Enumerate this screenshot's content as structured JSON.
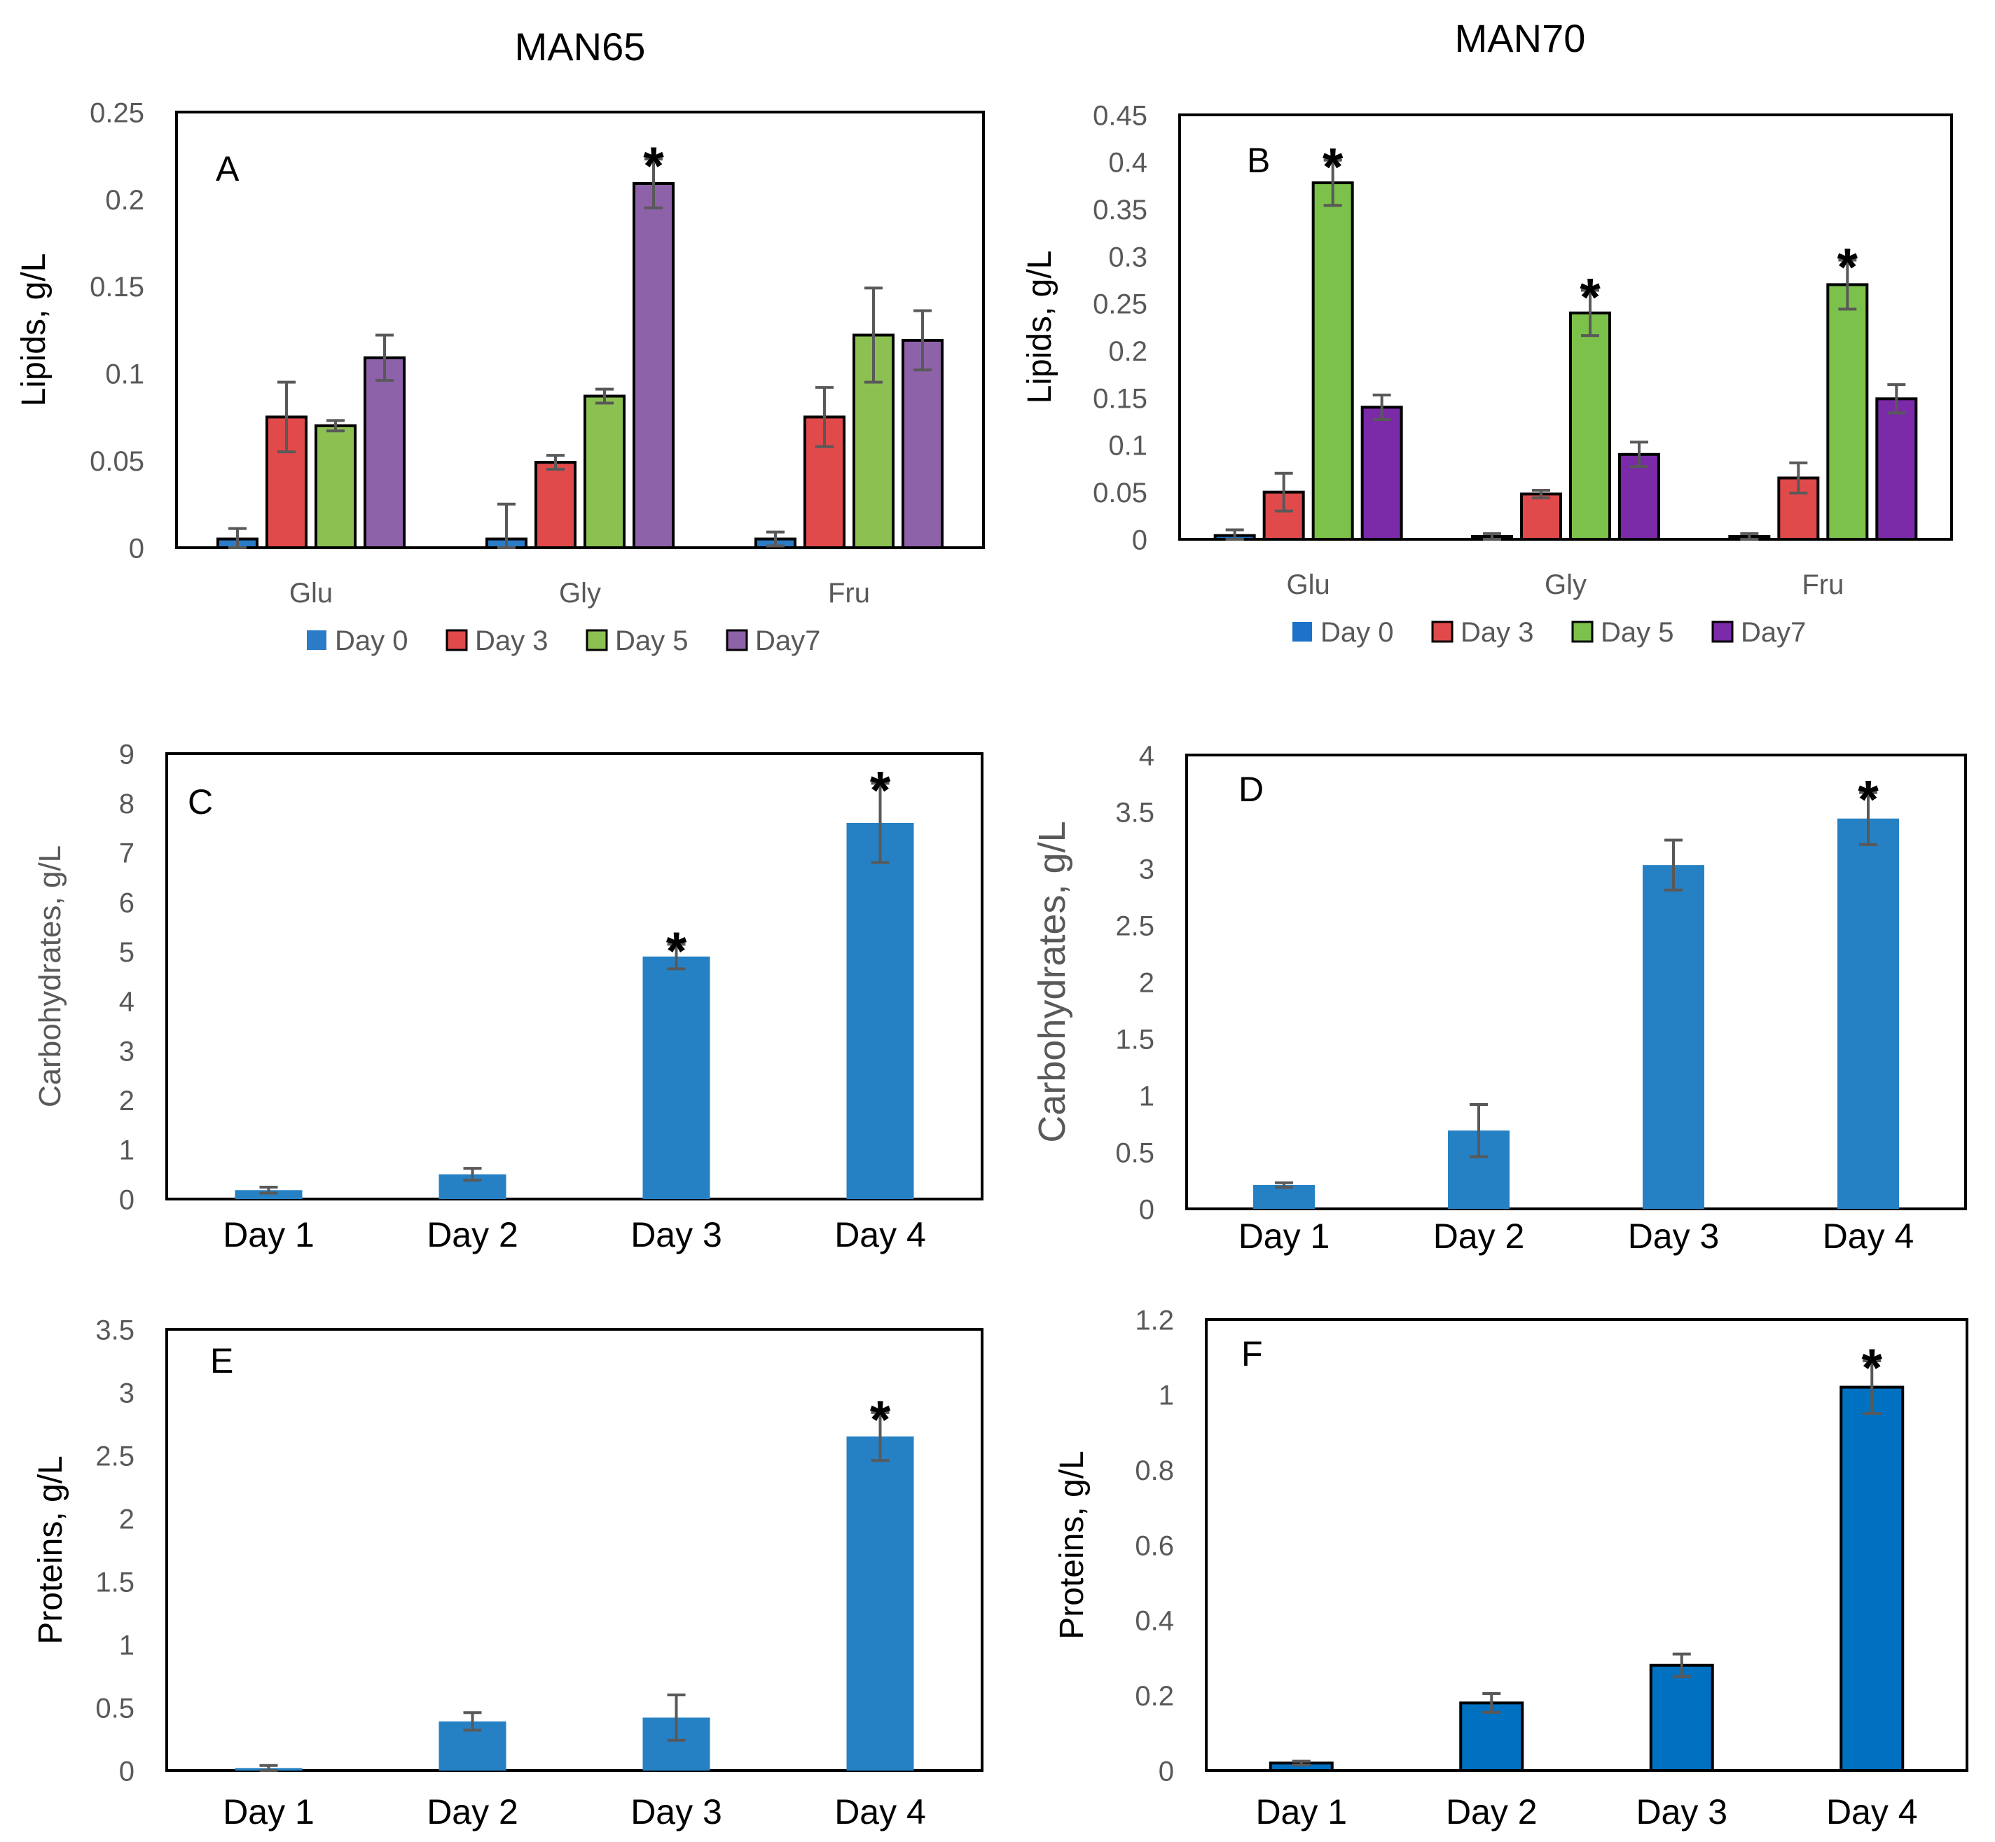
{
  "column_titles": [
    "MAN65",
    "MAN70"
  ],
  "chart_data": [
    {
      "id": "A",
      "panel_label": "A",
      "type": "bar",
      "title": "",
      "ylabel": "Lipids, g/L",
      "ylabel_color": "#000000",
      "categories": [
        "Glu",
        "Gly",
        "Fru"
      ],
      "ylim": [
        0,
        0.25
      ],
      "yticks": [
        "0",
        "0.05",
        "0.1",
        "0.15",
        "0.2",
        "0.25"
      ],
      "series": [
        {
          "name": "Day 0",
          "color": "#2B7CC6",
          "values": [
            0.005,
            0.005,
            0.005
          ],
          "errors": [
            0.006,
            0.02,
            0.004
          ]
        },
        {
          "name": "Day 3",
          "color": "#E04A4A",
          "values": [
            0.075,
            0.049,
            0.075
          ],
          "errors": [
            0.02,
            0.004,
            0.017
          ]
        },
        {
          "name": "Day 5",
          "color": "#8CC152",
          "values": [
            0.07,
            0.087,
            0.122
          ],
          "errors": [
            0.003,
            0.004,
            0.027
          ]
        },
        {
          "name": "Day7",
          "color": "#8E62A9",
          "values": [
            0.109,
            0.209,
            0.119
          ],
          "errors": [
            0.013,
            0.014,
            0.017
          ]
        }
      ],
      "bar_outline": true,
      "annotations": [
        {
          "category": "Gly",
          "series": "Day7",
          "text": "*"
        }
      ],
      "legend": "bottom"
    },
    {
      "id": "B",
      "panel_label": "B",
      "type": "bar",
      "title": "",
      "ylabel": "Lipids, g/L",
      "ylabel_color": "#000000",
      "categories": [
        "Glu",
        "Gly",
        "Fru"
      ],
      "ylim": [
        0,
        0.45
      ],
      "yticks": [
        "0",
        "0.05",
        "0.1",
        "0.15",
        "0.2",
        "0.25",
        "0.3",
        "0.35",
        "0.4",
        "0.45"
      ],
      "series": [
        {
          "name": "Day 0",
          "color": "#1E72C8",
          "values": [
            0.004,
            0.003,
            0.003
          ],
          "errors": [
            0.006,
            0.003,
            0.003
          ]
        },
        {
          "name": "Day 3",
          "color": "#E04A4A",
          "values": [
            0.05,
            0.048,
            0.065
          ],
          "errors": [
            0.02,
            0.004,
            0.016
          ]
        },
        {
          "name": "Day 5",
          "color": "#7CC24A",
          "values": [
            0.378,
            0.24,
            0.27
          ],
          "errors": [
            0.024,
            0.024,
            0.026
          ]
        },
        {
          "name": "Day7",
          "color": "#7B2AA8",
          "values": [
            0.14,
            0.09,
            0.149
          ],
          "errors": [
            0.013,
            0.013,
            0.015
          ]
        }
      ],
      "bar_outline": true,
      "annotations": [
        {
          "category": "Glu",
          "series": "Day 5",
          "text": "*"
        },
        {
          "category": "Gly",
          "series": "Day 5",
          "text": "*"
        },
        {
          "category": "Fru",
          "series": "Day 5",
          "text": "*"
        }
      ],
      "legend": "bottom"
    },
    {
      "id": "C",
      "panel_label": "C",
      "type": "bar",
      "title": "",
      "ylabel": "Carbohydrates, g/L",
      "ylabel_color": "#595959",
      "categories": [
        "Day 1",
        "Day 2",
        "Day 3",
        "Day 4"
      ],
      "ylim": [
        0,
        9
      ],
      "yticks": [
        "0",
        "1",
        "2",
        "3",
        "4",
        "5",
        "6",
        "7",
        "8",
        "9"
      ],
      "series": [
        {
          "name": "",
          "color": "#2581C4",
          "values": [
            0.18,
            0.5,
            4.9,
            7.6
          ],
          "errors": [
            0.06,
            0.12,
            0.25,
            0.8
          ]
        }
      ],
      "bar_outline": false,
      "annotations": [
        {
          "category": "Day 3",
          "series": "",
          "text": "*"
        },
        {
          "category": "Day 4",
          "series": "",
          "text": "*"
        }
      ],
      "legend": "none"
    },
    {
      "id": "D",
      "panel_label": "D",
      "type": "bar",
      "title": "",
      "ylabel": "Carbohydrates, g/L",
      "ylabel_color": "#595959",
      "categories": [
        "Day 1",
        "Day 2",
        "Day 3",
        "Day 4"
      ],
      "ylim": [
        0,
        4
      ],
      "yticks": [
        "0",
        "0.5",
        "1",
        "1.5",
        "2",
        "2.5",
        "3",
        "3.5",
        "4"
      ],
      "series": [
        {
          "name": "",
          "color": "#2581C4",
          "values": [
            0.21,
            0.69,
            3.03,
            3.44
          ],
          "errors": [
            0.02,
            0.23,
            0.22,
            0.23
          ]
        }
      ],
      "bar_outline": false,
      "annotations": [
        {
          "category": "Day 4",
          "series": "",
          "text": "*"
        }
      ],
      "legend": "none"
    },
    {
      "id": "E",
      "panel_label": "E",
      "type": "bar",
      "title": "",
      "ylabel": "Proteins,  g/L",
      "ylabel_color": "#000000",
      "categories": [
        "Day 1",
        "Day 2",
        "Day 3",
        "Day 4"
      ],
      "ylim": [
        0,
        3.5
      ],
      "yticks": [
        "0",
        "0.5",
        "1",
        "1.5",
        "2",
        "2.5",
        "3",
        "3.5"
      ],
      "series": [
        {
          "name": "",
          "color": "#2581C4",
          "values": [
            0.02,
            0.39,
            0.42,
            2.65
          ],
          "errors": [
            0.02,
            0.07,
            0.18,
            0.19
          ]
        }
      ],
      "bar_outline": false,
      "annotations": [
        {
          "category": "Day 4",
          "series": "",
          "text": "*"
        }
      ],
      "legend": "none"
    },
    {
      "id": "F",
      "panel_label": "F",
      "type": "bar",
      "title": "",
      "ylabel": "Proteins, g/L",
      "ylabel_color": "#000000",
      "categories": [
        "Day 1",
        "Day 2",
        "Day 3",
        "Day 4"
      ],
      "ylim": [
        0,
        1.2
      ],
      "yticks": [
        "0",
        "0.2",
        "0.4",
        "0.6",
        "0.8",
        "1",
        "1.2"
      ],
      "series": [
        {
          "name": "",
          "color": "#0070C0",
          "values": [
            0.02,
            0.18,
            0.28,
            1.02
          ],
          "errors": [
            0.005,
            0.025,
            0.03,
            0.07
          ]
        }
      ],
      "bar_outline": true,
      "annotations": [
        {
          "category": "Day 4",
          "series": "",
          "text": "*"
        }
      ],
      "legend": "none"
    }
  ]
}
